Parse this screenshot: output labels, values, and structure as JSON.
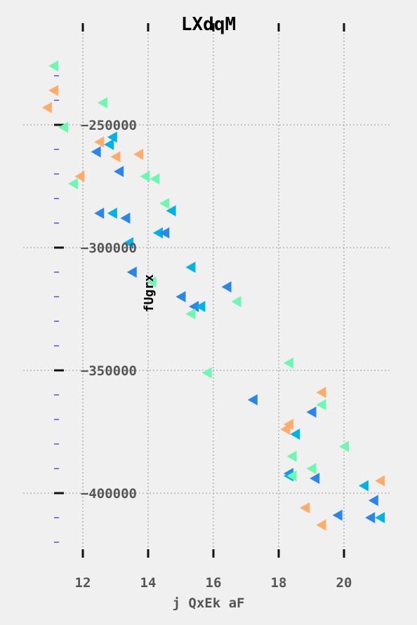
{
  "chart_data": {
    "type": "scatter",
    "title": "LXdqM",
    "xlabel": "j QxEk  aF",
    "ylabel": "fUgrx",
    "xlim": [
      10.6,
      21.5
    ],
    "ylim": [
      -425000,
      -223000
    ],
    "x_ticks": [
      12,
      14,
      16,
      18,
      20
    ],
    "x_tick_labels": [
      "12",
      "14",
      "16",
      "18",
      "20"
    ],
    "y_ticks": [
      -250000,
      -300000,
      -350000,
      -400000
    ],
    "y_tick_labels": [
      "−250000",
      "−300000",
      "−350000",
      "−400000"
    ],
    "y_minor_ticks": [
      -230000,
      -240000,
      -260000,
      -270000,
      -280000,
      -290000,
      -310000,
      -320000,
      -330000,
      -340000,
      -360000,
      -370000,
      -380000,
      -390000,
      -410000,
      -420000
    ],
    "grid": true,
    "marker": "triangle-left",
    "colors": {
      "background": "#f0f0f0",
      "grid": "#aaaaaa",
      "tick_major": "#111111",
      "tick_minor": "#2233cc",
      "green": "#6ef7b0",
      "orange": "#ffab6a",
      "blue": "#2a86ec",
      "cyan": "#00b3e6"
    },
    "points": [
      {
        "x": 11.1,
        "y": -226000,
        "c": "green"
      },
      {
        "x": 11.1,
        "y": -236000,
        "c": "orange"
      },
      {
        "x": 10.9,
        "y": -243000,
        "c": "orange"
      },
      {
        "x": 12.6,
        "y": -241000,
        "c": "green"
      },
      {
        "x": 11.4,
        "y": -251000,
        "c": "green"
      },
      {
        "x": 12.9,
        "y": -255000,
        "c": "cyan"
      },
      {
        "x": 12.5,
        "y": -257000,
        "c": "orange"
      },
      {
        "x": 12.8,
        "y": -258000,
        "c": "cyan"
      },
      {
        "x": 12.4,
        "y": -261000,
        "c": "blue"
      },
      {
        "x": 13.0,
        "y": -263000,
        "c": "orange"
      },
      {
        "x": 13.7,
        "y": -262000,
        "c": "orange"
      },
      {
        "x": 13.1,
        "y": -269000,
        "c": "blue"
      },
      {
        "x": 11.9,
        "y": -271000,
        "c": "orange"
      },
      {
        "x": 11.7,
        "y": -274000,
        "c": "green"
      },
      {
        "x": 13.9,
        "y": -271000,
        "c": "green"
      },
      {
        "x": 14.2,
        "y": -272000,
        "c": "green"
      },
      {
        "x": 14.5,
        "y": -282000,
        "c": "green"
      },
      {
        "x": 14.7,
        "y": -285000,
        "c": "cyan"
      },
      {
        "x": 12.5,
        "y": -286000,
        "c": "blue"
      },
      {
        "x": 12.9,
        "y": -286000,
        "c": "cyan"
      },
      {
        "x": 13.3,
        "y": -288000,
        "c": "blue"
      },
      {
        "x": 14.3,
        "y": -294000,
        "c": "cyan"
      },
      {
        "x": 14.5,
        "y": -294000,
        "c": "blue"
      },
      {
        "x": 13.4,
        "y": -298000,
        "c": "cyan"
      },
      {
        "x": 13.5,
        "y": -310000,
        "c": "blue"
      },
      {
        "x": 15.3,
        "y": -308000,
        "c": "cyan"
      },
      {
        "x": 14.1,
        "y": -314000,
        "c": "green"
      },
      {
        "x": 16.4,
        "y": -316000,
        "c": "blue"
      },
      {
        "x": 15.0,
        "y": -320000,
        "c": "blue"
      },
      {
        "x": 16.7,
        "y": -322000,
        "c": "green"
      },
      {
        "x": 15.4,
        "y": -324000,
        "c": "blue"
      },
      {
        "x": 15.6,
        "y": -324000,
        "c": "cyan"
      },
      {
        "x": 15.3,
        "y": -327000,
        "c": "green"
      },
      {
        "x": 15.8,
        "y": -351000,
        "c": "green"
      },
      {
        "x": 18.3,
        "y": -347000,
        "c": "green"
      },
      {
        "x": 19.3,
        "y": -359000,
        "c": "orange"
      },
      {
        "x": 17.2,
        "y": -362000,
        "c": "blue"
      },
      {
        "x": 19.3,
        "y": -364000,
        "c": "green"
      },
      {
        "x": 19.0,
        "y": -367000,
        "c": "blue"
      },
      {
        "x": 18.3,
        "y": -372000,
        "c": "orange"
      },
      {
        "x": 18.2,
        "y": -374000,
        "c": "orange"
      },
      {
        "x": 18.5,
        "y": -376000,
        "c": "cyan"
      },
      {
        "x": 20.0,
        "y": -381000,
        "c": "green"
      },
      {
        "x": 18.4,
        "y": -385000,
        "c": "green"
      },
      {
        "x": 19.0,
        "y": -390000,
        "c": "green"
      },
      {
        "x": 18.3,
        "y": -392000,
        "c": "blue"
      },
      {
        "x": 18.3,
        "y": -393000,
        "c": "cyan"
      },
      {
        "x": 18.4,
        "y": -393000,
        "c": "green"
      },
      {
        "x": 19.1,
        "y": -394000,
        "c": "blue"
      },
      {
        "x": 21.1,
        "y": -395000,
        "c": "orange"
      },
      {
        "x": 20.6,
        "y": -397000,
        "c": "cyan"
      },
      {
        "x": 20.9,
        "y": -403000,
        "c": "blue"
      },
      {
        "x": 18.8,
        "y": -406000,
        "c": "orange"
      },
      {
        "x": 19.8,
        "y": -409000,
        "c": "blue"
      },
      {
        "x": 20.8,
        "y": -410000,
        "c": "blue"
      },
      {
        "x": 21.1,
        "y": -410000,
        "c": "cyan"
      },
      {
        "x": 19.3,
        "y": -413000,
        "c": "orange"
      }
    ]
  }
}
